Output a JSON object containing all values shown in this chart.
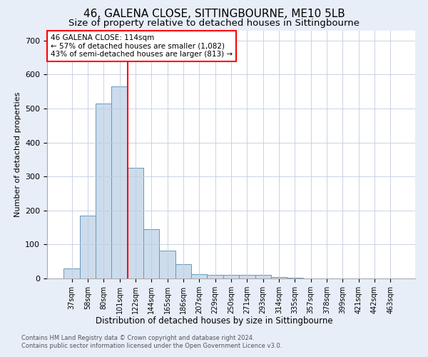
{
  "title": "46, GALENA CLOSE, SITTINGBOURNE, ME10 5LB",
  "subtitle": "Size of property relative to detached houses in Sittingbourne",
  "xlabel": "Distribution of detached houses by size in Sittingbourne",
  "ylabel": "Number of detached properties",
  "categories": [
    "37sqm",
    "58sqm",
    "80sqm",
    "101sqm",
    "122sqm",
    "144sqm",
    "165sqm",
    "186sqm",
    "207sqm",
    "229sqm",
    "250sqm",
    "271sqm",
    "293sqm",
    "314sqm",
    "335sqm",
    "357sqm",
    "378sqm",
    "399sqm",
    "421sqm",
    "442sqm",
    "463sqm"
  ],
  "values": [
    30,
    185,
    515,
    565,
    325,
    145,
    82,
    42,
    12,
    10,
    10,
    10,
    10,
    5,
    3,
    0,
    0,
    0,
    0,
    0,
    0
  ],
  "bar_color": "#ccdcec",
  "bar_edge_color": "#6699bb",
  "property_line_color": "red",
  "annotation_text": "46 GALENA CLOSE: 114sqm\n← 57% of detached houses are smaller (1,082)\n43% of semi-detached houses are larger (813) →",
  "annotation_box_color": "white",
  "annotation_box_edge_color": "red",
  "footnote1": "Contains HM Land Registry data © Crown copyright and database right 2024.",
  "footnote2": "Contains public sector information licensed under the Open Government Licence v3.0.",
  "background_color": "#e8eef8",
  "plot_background_color": "#ffffff",
  "grid_color": "#c0cce0",
  "title_fontsize": 11,
  "subtitle_fontsize": 9.5,
  "ylim": [
    0,
    730
  ],
  "yticks": [
    0,
    100,
    200,
    300,
    400,
    500,
    600,
    700
  ]
}
